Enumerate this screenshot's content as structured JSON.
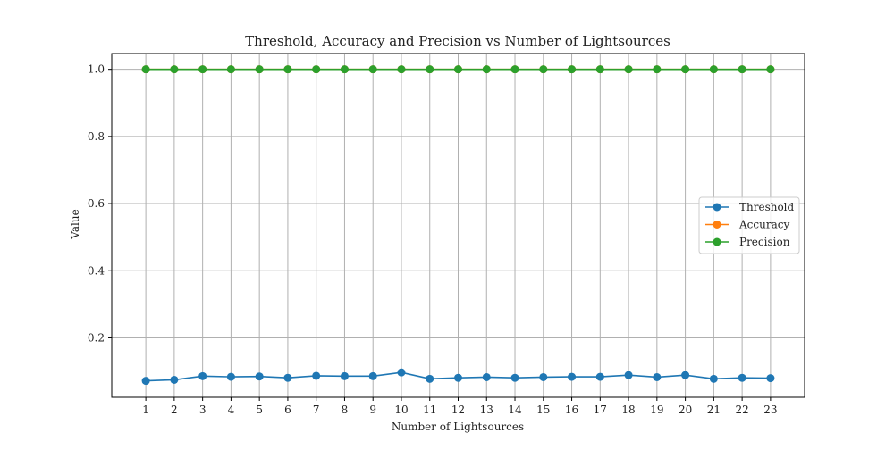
{
  "chart_data": {
    "type": "line",
    "title": "Threshold, Accuracy and Precision vs Number of Lightsources",
    "xlabel": "Number of Lightsources",
    "ylabel": "Value",
    "x": [
      1,
      2,
      3,
      4,
      5,
      6,
      7,
      8,
      9,
      10,
      11,
      12,
      13,
      14,
      15,
      16,
      17,
      18,
      19,
      20,
      21,
      22,
      23
    ],
    "xlim": [
      -0.2,
      24.2
    ],
    "ylim": [
      0.023,
      1.047
    ],
    "yticks": [
      0.2,
      0.4,
      0.6,
      0.8,
      1.0
    ],
    "ytick_labels": [
      "0.2",
      "0.4",
      "0.6",
      "0.8",
      "1.0"
    ],
    "grid": true,
    "legend_position": "center-right",
    "series": [
      {
        "name": "Threshold",
        "color": "#1f77b4",
        "marker": "circle",
        "values": [
          0.072,
          0.075,
          0.086,
          0.084,
          0.085,
          0.081,
          0.087,
          0.086,
          0.086,
          0.097,
          0.078,
          0.081,
          0.083,
          0.081,
          0.083,
          0.084,
          0.084,
          0.089,
          0.083,
          0.089,
          0.078,
          0.081,
          0.08
        ]
      },
      {
        "name": "Accuracy",
        "color": "#ff7f0e",
        "marker": "circle",
        "values": [
          1,
          1,
          1,
          1,
          1,
          1,
          1,
          1,
          1,
          1,
          1,
          1,
          1,
          1,
          1,
          1,
          1,
          1,
          1,
          1,
          1,
          1,
          1
        ]
      },
      {
        "name": "Precision",
        "color": "#2ca02c",
        "marker": "circle",
        "values": [
          1,
          1,
          1,
          1,
          1,
          1,
          1,
          1,
          1,
          1,
          1,
          1,
          1,
          1,
          1,
          1,
          1,
          1,
          1,
          1,
          1,
          1,
          1
        ]
      }
    ]
  }
}
